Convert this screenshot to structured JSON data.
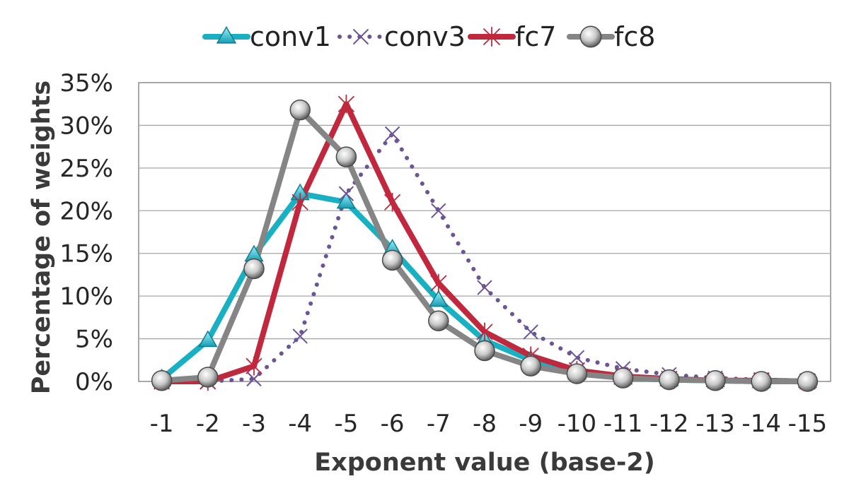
{
  "chart_data": {
    "type": "line",
    "categories": [
      "-1",
      "-2",
      "-3",
      "-4",
      "-5",
      "-6",
      "-7",
      "-8",
      "-9",
      "-10",
      "-11",
      "-12",
      "-13",
      "-14",
      "-15"
    ],
    "xlabel": "Exponent value (base-2)",
    "ylabel": "Percentage of weights",
    "ylim": [
      0,
      35
    ],
    "y_ticks": [
      "0%",
      "5%",
      "10%",
      "15%",
      "20%",
      "25%",
      "30%",
      "35%"
    ],
    "grid": true,
    "legend_position": "top",
    "series": [
      {
        "name": "conv1",
        "color": "#1ab0c4",
        "marker": "triangle",
        "style": "solid",
        "values": [
          0.3,
          4.8,
          14.8,
          22.0,
          21.0,
          15.5,
          9.5,
          4.8,
          2.5,
          1.0,
          0.4,
          0.2,
          0.1,
          0.0,
          0.0
        ]
      },
      {
        "name": "conv3",
        "color": "#6b5596",
        "marker": "x",
        "style": "dotted",
        "values": [
          0.0,
          0.0,
          0.3,
          5.3,
          22.0,
          29.0,
          20.0,
          11.0,
          5.8,
          2.8,
          1.5,
          0.8,
          0.4,
          0.2,
          0.1
        ]
      },
      {
        "name": "fc7",
        "color": "#c0283d",
        "marker": "asterisk",
        "style": "solid",
        "values": [
          0.0,
          0.0,
          1.8,
          21.0,
          32.5,
          21.0,
          11.5,
          5.8,
          3.0,
          1.3,
          0.6,
          0.3,
          0.1,
          0.1,
          0.0
        ]
      },
      {
        "name": "fc8",
        "color": "#858585",
        "marker": "circle",
        "style": "solid",
        "values": [
          0.1,
          0.5,
          13.2,
          31.8,
          26.3,
          14.2,
          7.1,
          3.6,
          1.8,
          0.9,
          0.4,
          0.2,
          0.1,
          0.0,
          0.0
        ]
      }
    ]
  }
}
